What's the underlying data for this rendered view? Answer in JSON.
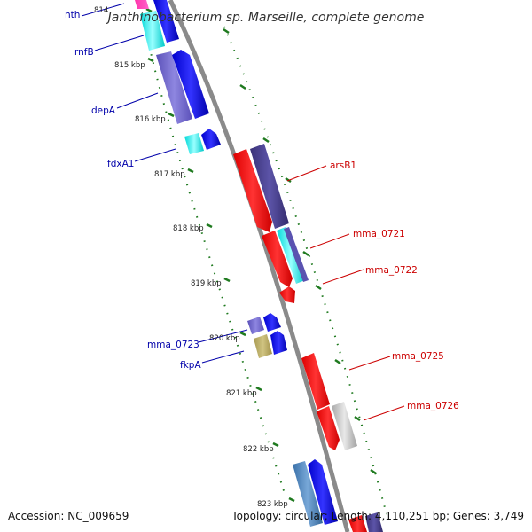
{
  "title": "Janthinobacterium sp. Marseille, complete genome",
  "footer": {
    "accession": "Accession: NC_009659",
    "stats": "Topology: circular; Length: 4,110,251 bp; Genes: 3,749"
  },
  "colors": {
    "backbone": "#888888",
    "dotted_track": "#1f7a1f",
    "forward_label": "#0000aa",
    "reverse_label": "#cc0000"
  },
  "kbp_labels": [
    "814",
    "815 kbp",
    "816 kbp",
    "817 kbp",
    "818 kbp",
    "819 kbp",
    "820 kbp",
    "821 kbp",
    "822 kbp",
    "823 kbp"
  ],
  "gene_labels": {
    "nth": "nth",
    "rnfB": "rnfB",
    "depA": "depA",
    "fdxA1": "fdxA1",
    "mma_0723": "mma_0723",
    "fkpA": "fkpA",
    "arsB1": "arsB1",
    "mma_0721": "mma_0721",
    "mma_0722": "mma_0722",
    "mma_0725": "mma_0725",
    "mma_0726": "mma_0726"
  }
}
